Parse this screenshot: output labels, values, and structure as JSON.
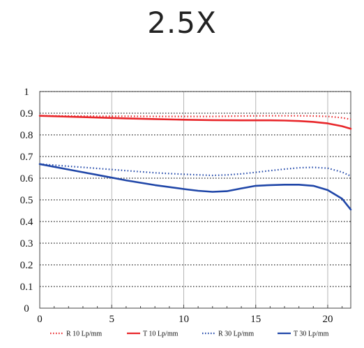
{
  "chart_data": {
    "type": "line",
    "title": "2.5X",
    "xlabel": "",
    "ylabel": "",
    "xlim": [
      0,
      21.6
    ],
    "ylim": [
      0,
      1
    ],
    "x_ticks": [
      "0",
      "5",
      "10",
      "15",
      "20"
    ],
    "y_ticks": [
      "0",
      "0.1",
      "0.2",
      "0.3",
      "0.4",
      "0.5",
      "0.6",
      "0.7",
      "0.8",
      "0.9",
      "1"
    ],
    "grid": "vertical solid at 5/10/15/20, horizontal dotted at every 0.1",
    "legend_position": "bottom",
    "series": [
      {
        "name": "R 10 Lp/mm",
        "color": "#e8262a",
        "dash": "dotted",
        "points": [
          [
            0,
            0.888
          ],
          [
            2,
            0.887
          ],
          [
            4,
            0.886
          ],
          [
            6,
            0.886
          ],
          [
            8,
            0.885
          ],
          [
            10,
            0.885
          ],
          [
            12,
            0.885
          ],
          [
            14,
            0.887
          ],
          [
            16,
            0.888
          ],
          [
            18,
            0.888
          ],
          [
            19,
            0.887
          ],
          [
            20,
            0.885
          ],
          [
            21,
            0.879
          ],
          [
            21.6,
            0.872
          ]
        ]
      },
      {
        "name": "T 10 Lp/mm",
        "color": "#e8262a",
        "dash": "solid",
        "points": [
          [
            0,
            0.888
          ],
          [
            2,
            0.884
          ],
          [
            4,
            0.88
          ],
          [
            6,
            0.876
          ],
          [
            8,
            0.873
          ],
          [
            10,
            0.87
          ],
          [
            12,
            0.868
          ],
          [
            14,
            0.867
          ],
          [
            16,
            0.867
          ],
          [
            17,
            0.866
          ],
          [
            18,
            0.864
          ],
          [
            19,
            0.86
          ],
          [
            20,
            0.853
          ],
          [
            21,
            0.84
          ],
          [
            21.6,
            0.828
          ]
        ]
      },
      {
        "name": "R 30 Lp/mm",
        "color": "#1f46a8",
        "dash": "dotted",
        "points": [
          [
            0,
            0.665
          ],
          [
            2,
            0.655
          ],
          [
            4,
            0.645
          ],
          [
            6,
            0.635
          ],
          [
            8,
            0.625
          ],
          [
            10,
            0.618
          ],
          [
            12,
            0.613
          ],
          [
            13,
            0.615
          ],
          [
            14,
            0.62
          ],
          [
            15,
            0.627
          ],
          [
            16,
            0.635
          ],
          [
            17,
            0.642
          ],
          [
            18,
            0.648
          ],
          [
            19,
            0.65
          ],
          [
            20,
            0.646
          ],
          [
            21,
            0.628
          ],
          [
            21.6,
            0.61
          ]
        ]
      },
      {
        "name": "T 30 Lp/mm",
        "color": "#1f46a8",
        "dash": "solid",
        "points": [
          [
            0,
            0.665
          ],
          [
            2,
            0.64
          ],
          [
            4,
            0.615
          ],
          [
            6,
            0.59
          ],
          [
            8,
            0.568
          ],
          [
            10,
            0.55
          ],
          [
            11,
            0.542
          ],
          [
            12,
            0.537
          ],
          [
            13,
            0.54
          ],
          [
            14,
            0.553
          ],
          [
            15,
            0.565
          ],
          [
            16,
            0.568
          ],
          [
            17,
            0.57
          ],
          [
            18,
            0.57
          ],
          [
            19,
            0.565
          ],
          [
            20,
            0.545
          ],
          [
            21,
            0.505
          ],
          [
            21.6,
            0.455
          ]
        ]
      }
    ]
  }
}
